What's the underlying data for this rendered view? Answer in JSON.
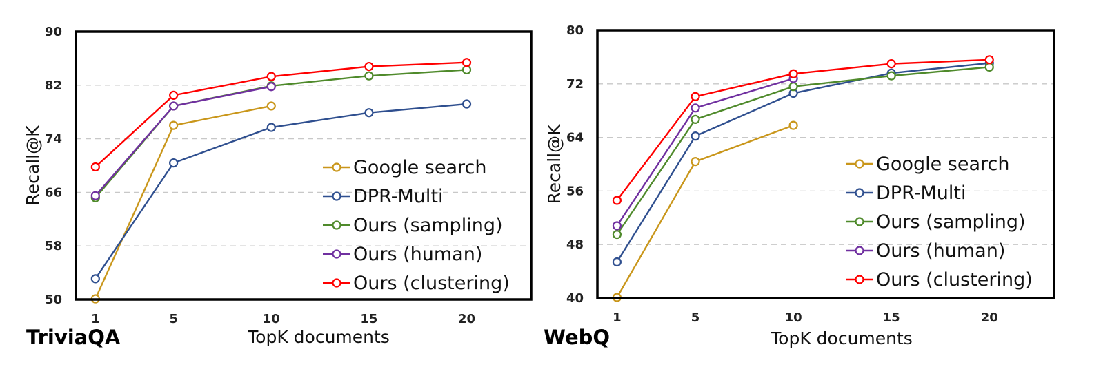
{
  "chart_data": [
    {
      "type": "line",
      "title": "TriviaQA",
      "xlabel": "TopK documents",
      "ylabel": "Recall@K",
      "categories": [
        "1",
        "5",
        "10",
        "15",
        "20"
      ],
      "x": [
        1,
        5,
        10,
        15,
        20
      ],
      "ylim": [
        50,
        90
      ],
      "yticks": [
        50,
        58,
        66,
        74,
        82,
        90
      ],
      "grid": true,
      "legend_position": "bottom-right",
      "series": [
        {
          "name": "Google search",
          "color": "#c9961a",
          "values": [
            50.1,
            76.0,
            78.9,
            null,
            null
          ]
        },
        {
          "name": "DPR-Multi",
          "color": "#2f4f8f",
          "values": [
            53.1,
            70.4,
            75.7,
            77.9,
            79.2
          ]
        },
        {
          "name": "Ours (sampling)",
          "color": "#4f8a2b",
          "values": [
            65.2,
            78.9,
            81.9,
            83.4,
            84.3
          ]
        },
        {
          "name": "Ours (human)",
          "color": "#7030a0",
          "values": [
            65.5,
            78.9,
            81.8,
            null,
            null
          ]
        },
        {
          "name": "Ours (clustering)",
          "color": "#ff0000",
          "values": [
            69.8,
            80.5,
            83.3,
            84.8,
            85.4
          ]
        }
      ]
    },
    {
      "type": "line",
      "title": "WebQ",
      "xlabel": "TopK documents",
      "ylabel": "Recall@K",
      "categories": [
        "1",
        "5",
        "10",
        "15",
        "20"
      ],
      "x": [
        1,
        5,
        10,
        15,
        20
      ],
      "ylim": [
        40,
        80
      ],
      "yticks": [
        40,
        48,
        56,
        64,
        72,
        80
      ],
      "grid": true,
      "legend_position": "bottom-right",
      "series": [
        {
          "name": "Google search",
          "color": "#c9961a",
          "values": [
            40.1,
            60.4,
            65.8,
            null,
            null
          ]
        },
        {
          "name": "DPR-Multi",
          "color": "#2f4f8f",
          "values": [
            45.4,
            64.2,
            70.6,
            73.6,
            75.1
          ]
        },
        {
          "name": "Ours (sampling)",
          "color": "#4f8a2b",
          "values": [
            49.5,
            66.7,
            71.6,
            73.2,
            74.5
          ]
        },
        {
          "name": "Ours (human)",
          "color": "#7030a0",
          "values": [
            50.8,
            68.4,
            72.8,
            null,
            null
          ]
        },
        {
          "name": "Ours (clustering)",
          "color": "#ff0000",
          "values": [
            54.6,
            70.1,
            73.5,
            75.0,
            75.6
          ]
        }
      ]
    }
  ]
}
